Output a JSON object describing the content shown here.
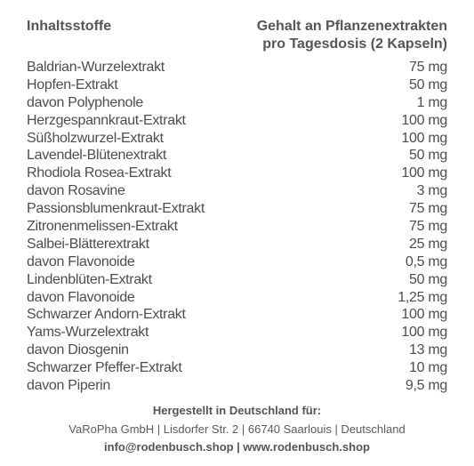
{
  "header": {
    "left_title": "Inhaltsstoffe",
    "right_title_line1": "Gehalt an Pflanzenextrakten",
    "right_title_line2": "pro Tagesdosis (2 Kapseln)"
  },
  "ingredients": [
    {
      "name": "Baldrian-Wurzelextrakt",
      "amount": "75 mg"
    },
    {
      "name": "Hopfen-Extrakt",
      "amount": "50 mg"
    },
    {
      "name": "davon Polyphenole",
      "amount": "1 mg"
    },
    {
      "name": "Herzgespannkraut-Extrakt",
      "amount": "100 mg"
    },
    {
      "name": "Süßholzwurzel-Extrakt",
      "amount": "100 mg"
    },
    {
      "name": "Lavendel-Blütenextrakt",
      "amount": "50 mg"
    },
    {
      "name": "Rhodiola Rosea-Extrakt",
      "amount": "100 mg"
    },
    {
      "name": "davon Rosavine",
      "amount": "3 mg"
    },
    {
      "name": "Passionsblumenkraut-Extrakt",
      "amount": "75 mg"
    },
    {
      "name": "Zitronenmelissen-Extrakt",
      "amount": "75 mg"
    },
    {
      "name": "Salbei-Blätterextrakt",
      "amount": "25 mg"
    },
    {
      "name": "davon Flavonoide",
      "amount": "0,5 mg"
    },
    {
      "name": "Lindenblüten-Extrakt",
      "amount": "50 mg"
    },
    {
      "name": "davon Flavonoide",
      "amount": "1,25 mg"
    },
    {
      "name": "Schwarzer Andorn-Extrakt",
      "amount": "100 mg"
    },
    {
      "name": "Yams-Wurzelextrakt",
      "amount": "100 mg"
    },
    {
      "name": "davon Diosgenin",
      "amount": "13 mg"
    },
    {
      "name": "Schwarzer Pfeffer-Extrakt",
      "amount": "10 mg"
    },
    {
      "name": "davon Piperin",
      "amount": "9,5 mg"
    }
  ],
  "footer": {
    "made_in": "Hergestellt in Deutschland für:",
    "address": "VaRoPha GmbH | Lisdorfer Str. 2 | 66740 Saarlouis | Deutschland",
    "contact": "info@rodenbusch.shop | www.rodenbusch.shop"
  },
  "colors": {
    "text": "#4d4d4d",
    "background": "#ffffff"
  }
}
